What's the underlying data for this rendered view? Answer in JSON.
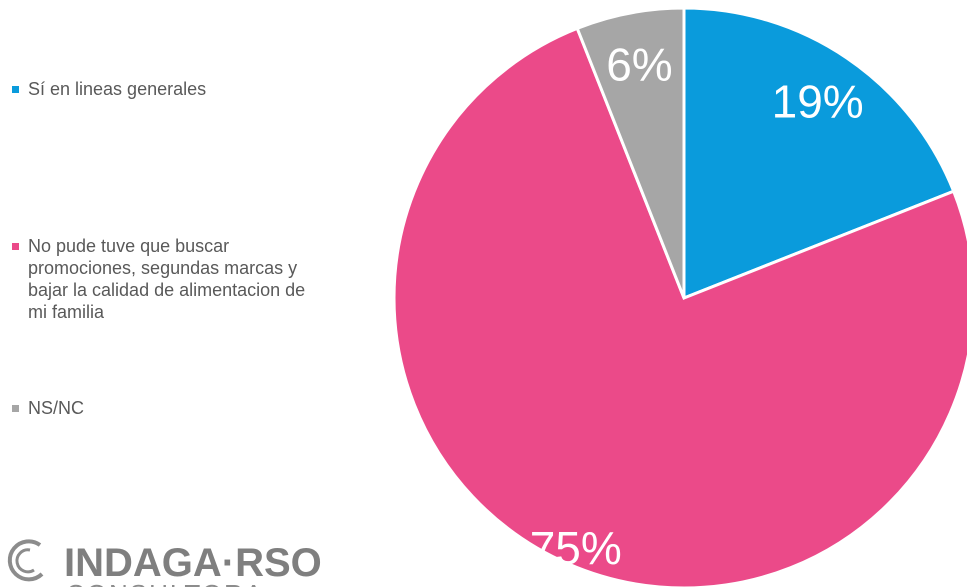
{
  "chart_data": {
    "type": "pie",
    "categories": [
      "Sí en lineas generales",
      "No pude tuve que buscar promociones, segundas marcas y bajar la calidad de alimentacion de mi familia",
      "NS/NC"
    ],
    "values": [
      19,
      75,
      6
    ],
    "value_labels": [
      "19%",
      "75%",
      "6%"
    ],
    "colors": [
      "#0a9bdc",
      "#eb4a89",
      "#a6a6a6"
    ],
    "legend": "left",
    "logo": {
      "name": "INDAGA·RSO",
      "subtitle": "CONSULTORA"
    }
  }
}
